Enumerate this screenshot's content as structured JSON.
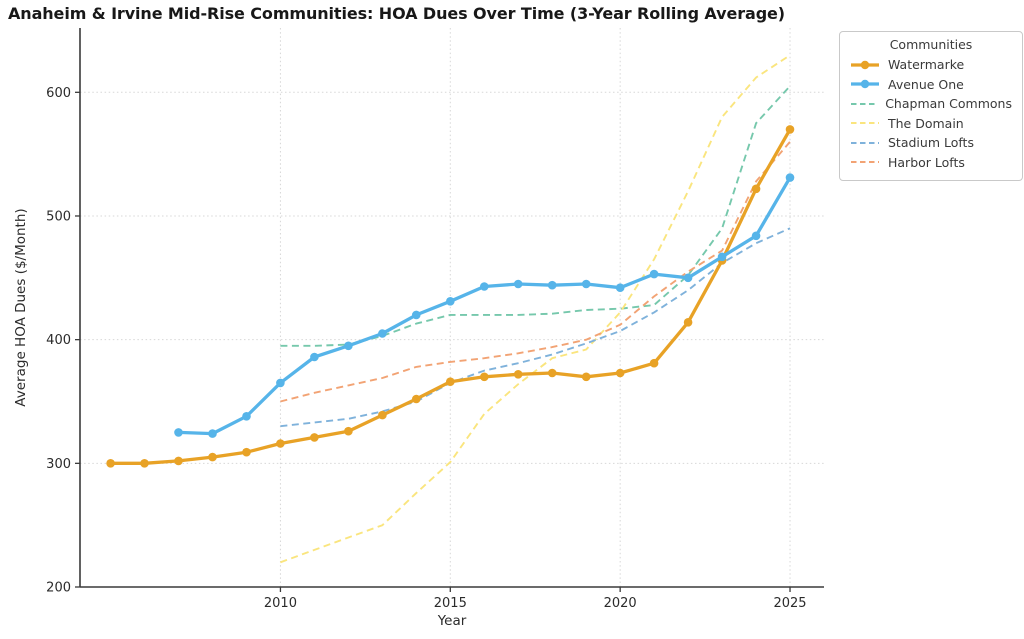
{
  "chart_data": {
    "type": "line",
    "title": "Anaheim & Irvine Mid-Rise Communities: HOA Dues Over Time (3-Year Rolling Average)",
    "xlabel": "Year",
    "ylabel": "Average HOA Dues ($/Month)",
    "legend_title": "Communities",
    "legend_position": "upper right, outside plot area",
    "grid": true,
    "xlim": [
      2004.1,
      2026.0
    ],
    "ylim": [
      200,
      652
    ],
    "x_ticks": [
      2010,
      2015,
      2020,
      2025
    ],
    "y_ticks": [
      200,
      300,
      400,
      500,
      600
    ],
    "colors": {
      "grid": "#d7d7d7",
      "spine": "#3a3a3a",
      "tick_label": "#2b2b2b"
    },
    "series": [
      {
        "name": "Watermarke",
        "color": "#E8A226",
        "style": "solid",
        "marker": true,
        "start_year": 2005,
        "values": [
          300,
          300,
          302,
          305,
          309,
          316,
          321,
          326,
          339,
          352,
          366,
          370,
          372,
          373,
          370,
          373,
          381,
          414,
          464,
          522,
          570
        ]
      },
      {
        "name": "Avenue One",
        "color": "#56B4E9",
        "style": "solid",
        "marker": true,
        "start_year": 2007,
        "values": [
          325,
          324,
          338,
          365,
          386,
          395,
          405,
          420,
          431,
          443,
          445,
          444,
          445,
          442,
          453,
          450,
          467,
          484,
          531
        ]
      },
      {
        "name": "Chapman Commons",
        "color": "#76C8AC",
        "style": "dashed",
        "marker": false,
        "start_year": 2010,
        "values": [
          395,
          395,
          396,
          403,
          413,
          420,
          420,
          420,
          421,
          424,
          425,
          428,
          452,
          490,
          575,
          605
        ]
      },
      {
        "name": "The Domain",
        "color": "#FAE57E",
        "style": "dashed",
        "marker": false,
        "start_year": 2010,
        "values": [
          220,
          230,
          240,
          250,
          276,
          301,
          340,
          364,
          385,
          392,
          422,
          465,
          520,
          580,
          612,
          630
        ]
      },
      {
        "name": "Stadium Lofts",
        "color": "#7FB2DB",
        "style": "dashed",
        "marker": false,
        "start_year": 2010,
        "values": [
          330,
          333,
          336,
          342,
          350,
          365,
          375,
          381,
          388,
          397,
          407,
          422,
          440,
          462,
          478,
          490
        ]
      },
      {
        "name": "Harbor Lofts",
        "color": "#F2A374",
        "style": "dashed",
        "marker": false,
        "start_year": 2010,
        "values": [
          350,
          357,
          363,
          369,
          378,
          382,
          385,
          389,
          394,
          400,
          412,
          435,
          455,
          472,
          528,
          560
        ]
      }
    ]
  }
}
